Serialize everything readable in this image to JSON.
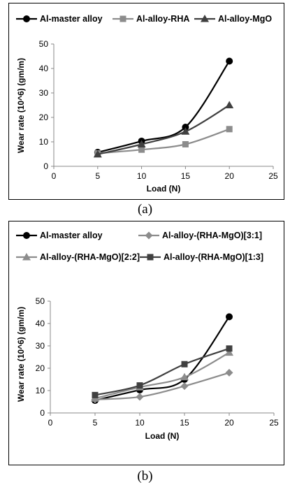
{
  "panels": [
    {
      "caption": "(a)",
      "chart_data": {
        "type": "line",
        "xlabel": "Load (N)",
        "ylabel": "Wear rate (10^6) (gm/m)",
        "xlim": [
          0,
          25
        ],
        "ylim": [
          0,
          50
        ],
        "xticks": [
          0,
          5,
          10,
          15,
          20,
          25
        ],
        "yticks": [
          0,
          10,
          20,
          30,
          40,
          50
        ],
        "legend_position": "top",
        "grid": false,
        "series": [
          {
            "name": "Al-master alloy",
            "x": [
              5,
              10,
              15,
              20
            ],
            "y": [
              5.7,
              10.3,
              16,
              43
            ],
            "color": "#000000",
            "marker": "circle"
          },
          {
            "name": "Al-alloy-RHA",
            "x": [
              5,
              10,
              15,
              20
            ],
            "y": [
              5.3,
              6.8,
              9,
              15.2
            ],
            "color": "#8c8c8c",
            "marker": "square"
          },
          {
            "name": "Al-alloy-MgO",
            "x": [
              5,
              10,
              15,
              20
            ],
            "y": [
              4.9,
              9,
              14.2,
              25
            ],
            "color": "#404040",
            "marker": "triangle"
          }
        ]
      }
    },
    {
      "caption": "(b)",
      "chart_data": {
        "type": "line",
        "xlabel": "Load (N)",
        "ylabel": "Wear rate (10^6) (gm/m)",
        "xlim": [
          0,
          25
        ],
        "ylim": [
          0,
          50
        ],
        "xticks": [
          0,
          5,
          10,
          15,
          20,
          25
        ],
        "yticks": [
          0,
          10,
          20,
          30,
          40,
          50
        ],
        "legend_position": "top",
        "grid": false,
        "series": [
          {
            "name": "Al-master alloy",
            "x": [
              5,
              10,
              15,
              20
            ],
            "y": [
              5.6,
              10.3,
              15,
              43
            ],
            "color": "#000000",
            "marker": "circle"
          },
          {
            "name": "Al-alloy-(RHA-MgO)[3:1]",
            "x": [
              5,
              10,
              15,
              20
            ],
            "y": [
              6,
              7.2,
              12,
              18
            ],
            "color": "#8c8c8c",
            "marker": "diamond"
          },
          {
            "name": "Al-alloy-(RHA-MgO)[2:2]",
            "x": [
              5,
              10,
              15,
              20
            ],
            "y": [
              6.5,
              11.5,
              16,
              27
            ],
            "color": "#8c8c8c",
            "marker": "triangle"
          },
          {
            "name": "Al-alloy-(RHA-MgO)[1:3]",
            "x": [
              5,
              10,
              15,
              20
            ],
            "y": [
              8,
              12.3,
              21.8,
              28.8
            ],
            "color": "#404040",
            "marker": "square"
          }
        ]
      }
    }
  ]
}
